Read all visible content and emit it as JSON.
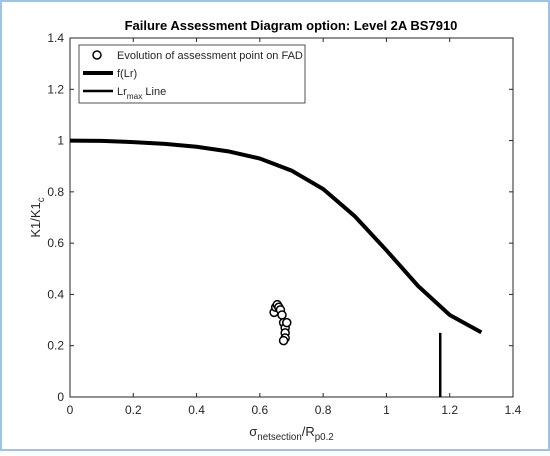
{
  "chart_data": {
    "type": "line",
    "title": "Failure Assessment Diagram option: Level 2A BS7910",
    "xlabel": [
      {
        "text": "σ"
      },
      {
        "text": "netsection",
        "sub": true
      },
      {
        "text": "/R"
      },
      {
        "text": "p0.2",
        "sub": true
      }
    ],
    "ylabel": [
      {
        "text": "K1/K1"
      },
      {
        "text": "c",
        "sub": true
      }
    ],
    "xlim": [
      0,
      1.4
    ],
    "ylim": [
      0,
      1.4
    ],
    "xticks": [
      0,
      0.2,
      0.4,
      0.6,
      0.8,
      1,
      1.2,
      1.4
    ],
    "yticks": [
      0,
      0.2,
      0.4,
      0.6,
      0.8,
      1,
      1.2,
      1.4
    ],
    "legend": "upper left",
    "series": [
      {
        "name": [
          {
            "text": "Evolution of assessment point on FAD"
          }
        ],
        "type": "scatter",
        "color": "#000000",
        "x": [
          0.645,
          0.65,
          0.655,
          0.66,
          0.665,
          0.67,
          0.675,
          0.68,
          0.68,
          0.68,
          0.675,
          0.685
        ],
        "values": [
          0.33,
          0.35,
          0.36,
          0.35,
          0.34,
          0.32,
          0.29,
          0.27,
          0.25,
          0.23,
          0.22,
          0.29
        ]
      },
      {
        "name": [
          {
            "text": "f(Lr)"
          }
        ],
        "type": "line",
        "color": "#000000",
        "width": 4,
        "x": [
          0,
          0.1,
          0.2,
          0.3,
          0.4,
          0.5,
          0.6,
          0.7,
          0.8,
          0.9,
          1.0,
          1.1,
          1.2,
          1.3
        ],
        "values": [
          1,
          0.999,
          0.994,
          0.987,
          0.976,
          0.958,
          0.93,
          0.883,
          0.811,
          0.705,
          0.572,
          0.433,
          0.32,
          0.252
        ]
      },
      {
        "name": [
          {
            "text": "Lr"
          },
          {
            "text": "max",
            "sub": true
          },
          {
            "text": " Line"
          }
        ],
        "type": "line",
        "color": "#000000",
        "width": 2.5,
        "x": [
          1.17,
          1.17
        ],
        "values": [
          0,
          0.25
        ]
      }
    ]
  }
}
